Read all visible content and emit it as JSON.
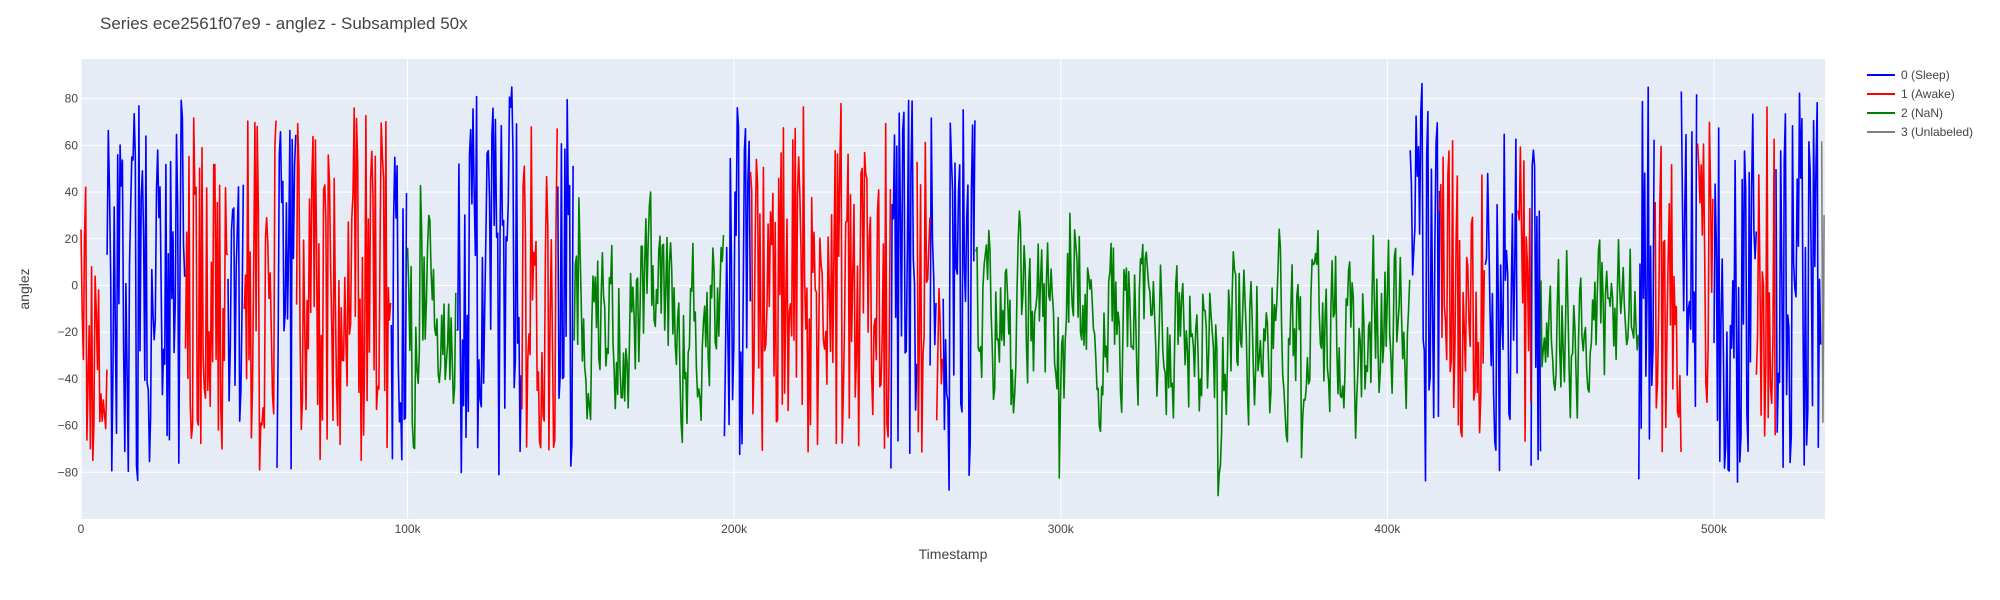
{
  "chart_data": {
    "type": "line",
    "title": "Series ece2561f07e9 - anglez - Subsampled 50x",
    "xlabel": "Timestamp",
    "ylabel": "anglez",
    "xlim": [
      0,
      534000
    ],
    "ylim": [
      -100,
      97
    ],
    "xticks": [
      0,
      100000,
      200000,
      300000,
      400000,
      500000
    ],
    "xtick_labels": [
      "0",
      "100k",
      "200k",
      "300k",
      "400k",
      "500k"
    ],
    "yticks": [
      -80,
      -60,
      -40,
      -20,
      0,
      20,
      40,
      60,
      80
    ],
    "ytick_labels": [
      "−80",
      "−60",
      "−40",
      "−20",
      "0",
      "20",
      "40",
      "60",
      "80"
    ],
    "grid": true,
    "legend_position": "top-right",
    "series": [
      {
        "name": "0 (Sleep)",
        "color": "#0000ff",
        "amplitude": 80,
        "segments": [
          [
            8000,
            32000
          ],
          [
            45000,
            50000
          ],
          [
            60000,
            66000
          ],
          [
            95000,
            100000
          ],
          [
            115000,
            135000
          ],
          [
            146000,
            151000
          ],
          [
            197000,
            205000
          ],
          [
            248000,
            256000
          ],
          [
            260000,
            262000
          ],
          [
            264000,
            274000
          ],
          [
            407000,
            416000
          ],
          [
            430000,
            440000
          ],
          [
            444000,
            447000
          ],
          [
            477000,
            482000
          ],
          [
            490000,
            495000
          ],
          [
            500000,
            513000
          ],
          [
            519000,
            533000
          ]
        ]
      },
      {
        "name": "1 (Awake)",
        "color": "#ff0000",
        "amplitude": 72,
        "segments": [
          [
            0,
            8000
          ],
          [
            32000,
            45000
          ],
          [
            50000,
            60000
          ],
          [
            66000,
            95000
          ],
          [
            135000,
            146000
          ],
          [
            205000,
            248000
          ],
          [
            256000,
            260000
          ],
          [
            262000,
            264000
          ],
          [
            416000,
            430000
          ],
          [
            440000,
            444000
          ],
          [
            482000,
            490000
          ],
          [
            495000,
            500000
          ],
          [
            513000,
            519000
          ]
        ]
      },
      {
        "name": "2 (NaN)",
        "color": "#008000",
        "amplitude": 35,
        "segments": [
          [
            100000,
            115000
          ],
          [
            151000,
            197000
          ],
          [
            274000,
            407000
          ],
          [
            447000,
            477000
          ]
        ]
      },
      {
        "name": "3 (Unlabeled)",
        "color": "#808080",
        "amplitude": 60,
        "segments": [
          [
            533000,
            534000
          ]
        ]
      }
    ]
  }
}
